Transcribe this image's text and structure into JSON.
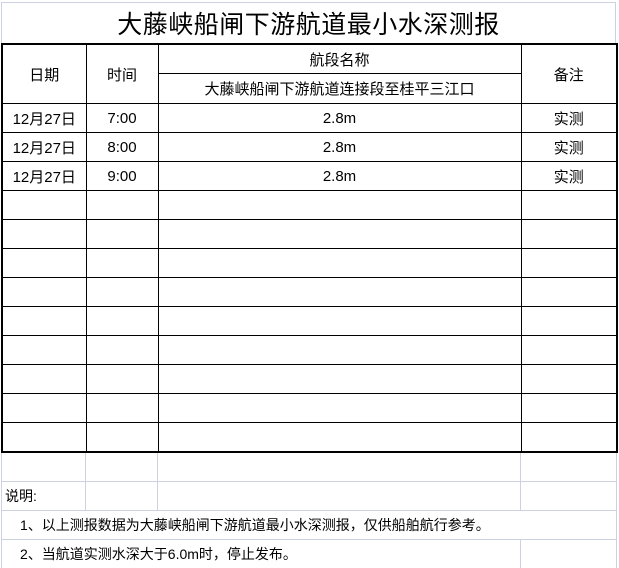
{
  "title": "大藤峡船闸下游航道最小水深测报",
  "table": {
    "headers": {
      "date": "日期",
      "time": "时间",
      "section": "航段名称",
      "section_name": "大藤峡船闸下游航道连接段至桂平三江口",
      "remark": "备注"
    },
    "rows": [
      {
        "date": "12月27日",
        "time": "7:00",
        "depth": "2.8m",
        "remark": "实测"
      },
      {
        "date": "12月27日",
        "time": "8:00",
        "depth": "2.8m",
        "remark": "实测"
      },
      {
        "date": "12月27日",
        "time": "9:00",
        "depth": "2.8m",
        "remark": "实测"
      }
    ],
    "empty_row_count": 9
  },
  "notes": {
    "label": "说明:",
    "items": [
      "1、以上测报数据为大藤峡船闸下游航道最小水深测报，仅供船舶航行参考。",
      "2、当航道实测水深大于6.0m时，停止发布。"
    ]
  },
  "colors": {
    "border_black": "#000000",
    "gridline": "#ccd2e1",
    "text": "#000000",
    "background": "#ffffff"
  }
}
